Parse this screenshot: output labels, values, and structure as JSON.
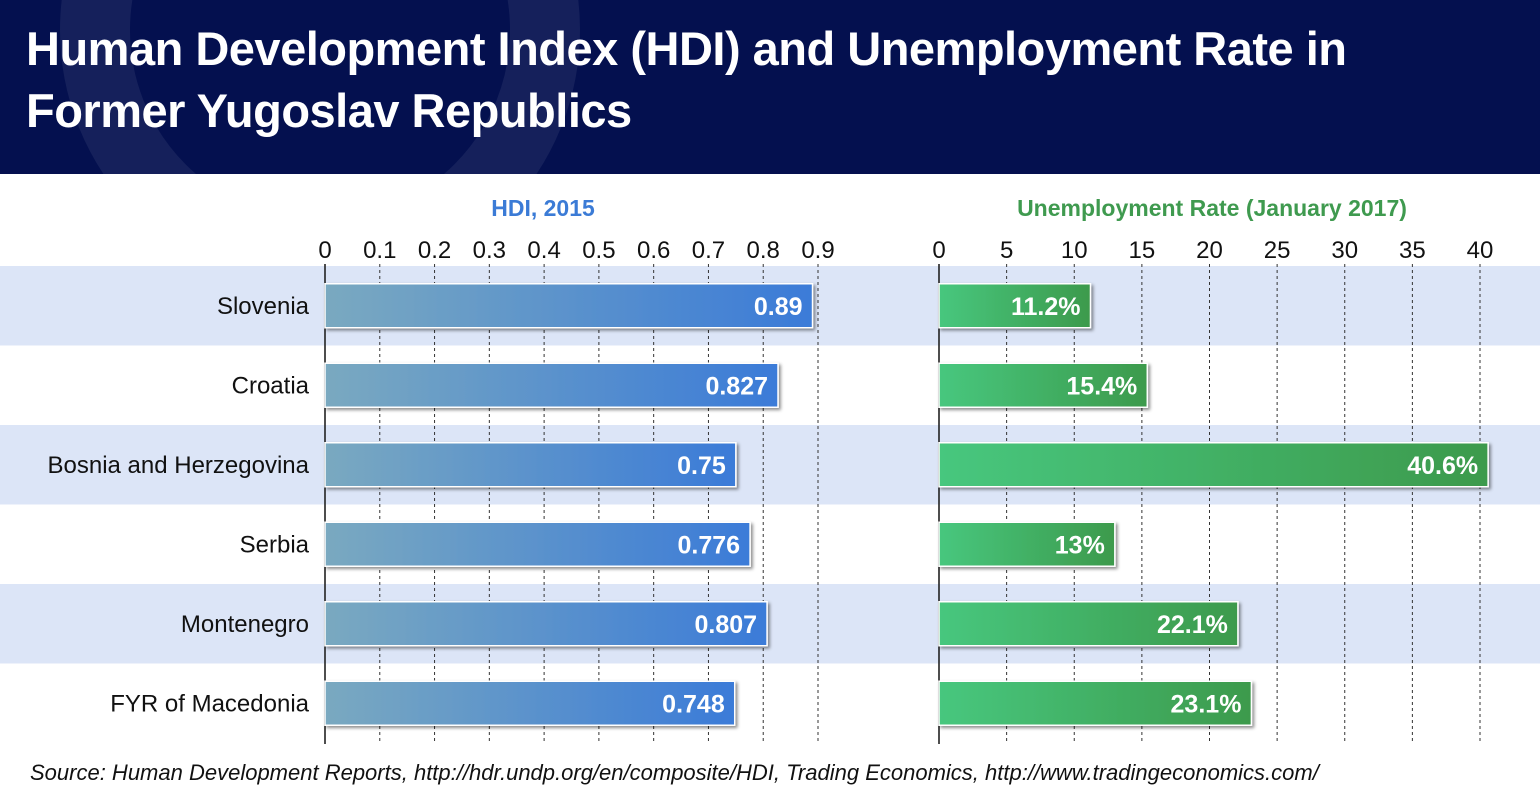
{
  "title": "Human Development Index (HDI) and Unemployment Rate in Former Yugoslav Republics",
  "source": "Source: Human Development Reports, http://hdr.undp.org/en/composite/HDI, Trading Economics, http://www.tradingeconomics.com/",
  "colors": {
    "header_bg": "#04104f",
    "hdi_title": "#3b7bd6",
    "unemp_title": "#3f9a4f",
    "band": "#dce5f7",
    "hdi_bar_start": "#7aa9c0",
    "hdi_bar_end": "#3b7bd8",
    "unemp_bar_start": "#47c77e",
    "unemp_bar_end": "#3d9a4c"
  },
  "chart_data": [
    {
      "type": "bar",
      "orientation": "horizontal",
      "title": "HDI, 2015",
      "categories": [
        "Slovenia",
        "Croatia",
        "Bosnia and Herzegovina",
        "Serbia",
        "Montenegro",
        "FYR of Macedonia"
      ],
      "values": [
        0.89,
        0.827,
        0.75,
        0.776,
        0.807,
        0.748
      ],
      "value_labels": [
        "0.89",
        "0.827",
        "0.75",
        "0.776",
        "0.807",
        "0.748"
      ],
      "xlim": [
        0,
        0.9
      ],
      "ticks": [
        0,
        0.1,
        0.2,
        0.3,
        0.4,
        0.5,
        0.6,
        0.7,
        0.8,
        0.9
      ],
      "tick_labels": [
        "0",
        "0.1",
        "0.2",
        "0.3",
        "0.4",
        "0.5",
        "0.6",
        "0.7",
        "0.8",
        "0.9"
      ],
      "axis_position": "top",
      "grid": true
    },
    {
      "type": "bar",
      "orientation": "horizontal",
      "title": "Unemployment Rate (January 2017)",
      "categories": [
        "Slovenia",
        "Croatia",
        "Bosnia and Herzegovina",
        "Serbia",
        "Montenegro",
        "FYR of Macedonia"
      ],
      "values": [
        11.2,
        15.4,
        40.6,
        13,
        22.1,
        23.1
      ],
      "value_labels": [
        "11.2%",
        "15.4%",
        "40.6%",
        "13%",
        "22.1%",
        "23.1%"
      ],
      "xlim": [
        0,
        40
      ],
      "ticks": [
        0,
        5,
        10,
        15,
        20,
        25,
        30,
        35,
        40
      ],
      "tick_labels": [
        "0",
        "5",
        "10",
        "15",
        "20",
        "25",
        "30",
        "35",
        "40"
      ],
      "axis_position": "top",
      "grid": true
    }
  ]
}
